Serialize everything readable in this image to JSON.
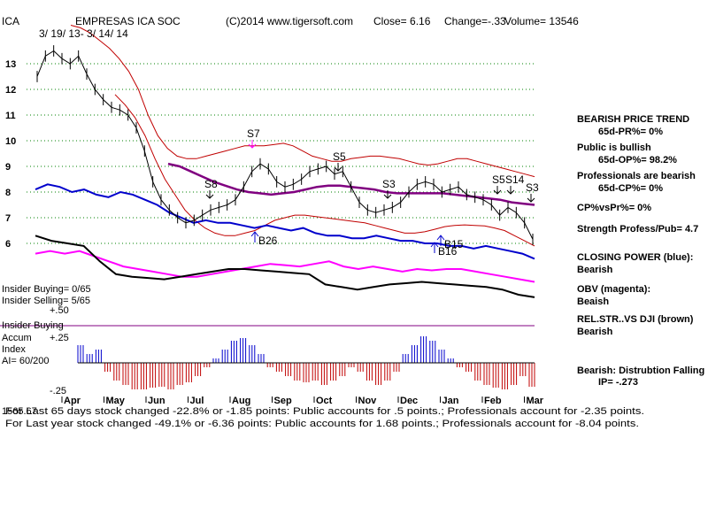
{
  "header": {
    "ticker": "ICA",
    "company": "EMPRESAS ICA SOC",
    "copyright": "(C)2014 www.tigersoft.com",
    "close": "Close=  6.16",
    "change": "Change=-.33",
    "volume": "Volume= 13546",
    "date_range": "3/ 19/ 13-  3/ 14/ 14"
  },
  "left_labels": {
    "insider_buying": "Insider Buying= 0/65",
    "insider_selling": "Insider Selling= 5/65",
    "plus_50": "+.50",
    "insider_buying_line": "Insider Buying",
    "accum": "Accum",
    "plus_25": "+.25",
    "index": "Index",
    "ai": "AI= 60/200",
    "minus_25": "-.25"
  },
  "right_panel": {
    "bearish_trend": "BEARISH PRICE TREND",
    "pr": "65d-PR%=  0%",
    "public_bullish": "Public is bullish",
    "op": "65d-OP%= 98.2%",
    "professionals_bearish": "Professionals are bearish",
    "cp": "65d-CP%=  0%",
    "cpvspr": "CP%vsPr%=   0%",
    "strength": "Strength Profess/Pub= 4.7",
    "closing_power": "CLOSING POWER (blue):",
    "closing_power_val": "Bearish",
    "obv": "OBV (magenta):",
    "obv_val": "Beaish",
    "relstr": "REL.STR..VS DJI (brown)",
    "relstr_val": "Bearish",
    "distribution": "Bearish: Distrubtion Falling",
    "ip": "IP= -.273"
  },
  "footer": {
    "line1_prefix": "1565.67",
    "line1": "For Last 65 days stock changed -22.8% or -1.85 points:  Public accounts for  .5 points.;  Professionals account for -2.35 points.",
    "line2": "For Last year stock changed -49.1% or -6.36 points:  Public accounts for  1.68 points.;  Professionals account for -8.04 points."
  },
  "colors": {
    "price": "#000000",
    "bands": "#c00000",
    "ma": "#800080",
    "closing_power": "#0000cc",
    "obv": "#ff00ff",
    "rel_str": "#000000",
    "accum_pos": "#0000cc",
    "accum_neg": "#c00000",
    "grid": "#008000",
    "signal_sell": "#ff00ff"
  },
  "chart_data": {
    "type": "line",
    "title": "EMPRESAS ICA SOC",
    "ylim": [
      5.5,
      14.2
    ],
    "yticks": [
      "13",
      "12",
      "11",
      "10",
      "9",
      "8",
      "7",
      "6"
    ],
    "ytick_values": [
      13,
      12,
      11,
      10,
      9,
      8,
      7,
      6
    ],
    "months": [
      "Apr",
      "May",
      "Jun",
      "Jul",
      "Aug",
      "Sep",
      "Oct",
      "Nov",
      "Dec",
      "Jan",
      "Feb",
      "Mar"
    ],
    "price_close": [
      12.5,
      13.3,
      13.5,
      13.2,
      13.0,
      13.3,
      12.6,
      12.0,
      11.6,
      11.3,
      11.2,
      11.0,
      10.5,
      9.6,
      8.4,
      7.7,
      7.3,
      7.0,
      6.8,
      6.9,
      7.1,
      7.3,
      7.4,
      7.5,
      7.7,
      8.2,
      8.8,
      9.1,
      8.9,
      8.4,
      8.2,
      8.3,
      8.5,
      8.8,
      8.9,
      9.0,
      8.7,
      8.8,
      8.2,
      7.6,
      7.3,
      7.2,
      7.3,
      7.4,
      7.6,
      8.0,
      8.3,
      8.4,
      8.3,
      8.0,
      8.1,
      8.2,
      7.9,
      7.8,
      7.7,
      7.5,
      7.1,
      7.4,
      7.2,
      6.8,
      6.16
    ],
    "upper_band": [
      14.5,
      14.4,
      14.2,
      13.9,
      13.6,
      13.2,
      12.7,
      12.0,
      11.0,
      10.2,
      9.7,
      9.4,
      9.3,
      9.3,
      9.4,
      9.5,
      9.6,
      9.7,
      9.8,
      9.8,
      9.8,
      9.85,
      9.9,
      9.8,
      9.6,
      9.4,
      9.3,
      9.2,
      9.2,
      9.3,
      9.35,
      9.4,
      9.4,
      9.35,
      9.3,
      9.2,
      9.1,
      9.05,
      9.1,
      9.2,
      9.3,
      9.3,
      9.2,
      9.1,
      9.0,
      8.9,
      8.8,
      8.7,
      8.6
    ],
    "lower_band": [
      11.8,
      11.4,
      10.9,
      10.2,
      9.3,
      8.5,
      7.9,
      7.3,
      6.9,
      6.6,
      6.4,
      6.3,
      6.3,
      6.4,
      6.5,
      6.7,
      6.9,
      7.0,
      7.1,
      7.1,
      7.05,
      7.0,
      6.95,
      6.9,
      6.85,
      6.8,
      6.7,
      6.6,
      6.5,
      6.4,
      6.4,
      6.45,
      6.55,
      6.65,
      6.7,
      6.72,
      6.7,
      6.68,
      6.6,
      6.5,
      6.3,
      6.1,
      5.9
    ],
    "moving_average": [
      9.1,
      9.0,
      8.8,
      8.6,
      8.4,
      8.25,
      8.1,
      8.0,
      7.95,
      7.9,
      7.95,
      8.0,
      8.1,
      8.2,
      8.25,
      8.25,
      8.2,
      8.15,
      8.1,
      8.0,
      7.95,
      7.95,
      7.95,
      7.95,
      7.95,
      7.9,
      7.85,
      7.8,
      7.75,
      7.7,
      7.6,
      7.55,
      7.5
    ],
    "signals": [
      "S7",
      "S8",
      "B26",
      "S5",
      "S3",
      "B15",
      "B16",
      "S5",
      "S14",
      "S3"
    ],
    "closing_power": [
      8.1,
      8.3,
      8.2,
      8.0,
      8.1,
      7.9,
      7.8,
      8.0,
      7.9,
      7.7,
      7.5,
      7.2,
      7.0,
      6.8,
      6.9,
      6.8,
      6.8,
      6.7,
      6.6,
      6.7,
      6.6,
      6.5,
      6.6,
      6.4,
      6.3,
      6.3,
      6.2,
      6.2,
      6.3,
      6.2,
      6.1,
      6.1,
      6.0,
      6.0,
      5.9,
      5.9,
      5.8,
      5.9,
      5.8,
      5.7,
      5.6,
      5.4
    ],
    "obv": [
      5.6,
      5.7,
      5.6,
      5.7,
      5.5,
      5.3,
      5.1,
      5.0,
      4.9,
      4.8,
      4.7,
      4.7,
      4.8,
      4.9,
      5.0,
      5.1,
      5.2,
      5.15,
      5.1,
      5.2,
      5.3,
      5.1,
      5.0,
      5.1,
      5.0,
      4.9,
      5.0,
      4.95,
      5.0,
      5.0,
      4.9,
      4.8,
      4.7,
      4.6,
      4.5
    ],
    "rel_str": [
      6.3,
      6.1,
      6.0,
      5.9,
      5.3,
      4.8,
      4.7,
      4.65,
      4.6,
      4.7,
      4.8,
      4.9,
      5.0,
      5.0,
      4.95,
      4.9,
      4.85,
      4.8,
      4.4,
      4.3,
      4.2,
      4.3,
      4.4,
      4.45,
      4.5,
      4.45,
      4.4,
      4.35,
      4.3,
      4.2,
      4.0,
      3.9
    ],
    "accum_index": [
      0.2,
      0.1,
      0.15,
      -0.1,
      -0.2,
      -0.25,
      -0.3,
      -0.3,
      -0.28,
      -0.27,
      -0.3,
      -0.25,
      -0.22,
      -0.15,
      -0.05,
      0.05,
      0.15,
      0.25,
      0.28,
      0.2,
      0.1,
      -0.05,
      -0.1,
      -0.15,
      -0.2,
      -0.22,
      -0.2,
      -0.25,
      -0.2,
      -0.15,
      -0.05,
      -0.1,
      -0.2,
      -0.25,
      -0.2,
      -0.1,
      0.1,
      0.2,
      0.3,
      0.25,
      0.15,
      0.05,
      -0.05,
      -0.1,
      -0.2,
      -0.25,
      -0.28,
      -0.3,
      -0.25,
      -0.15,
      -0.27
    ]
  }
}
